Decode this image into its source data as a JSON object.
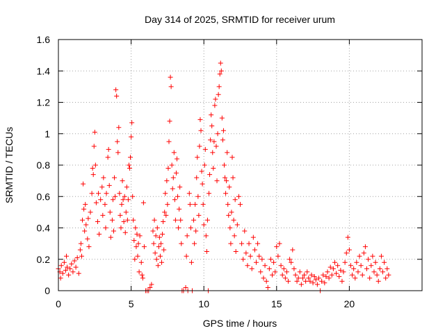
{
  "chart_data": {
    "type": "scatter",
    "title": "Day 314 of 2025, SRMTID for receiver urum",
    "xlabel": "GPS time / hours",
    "ylabel": "SRMTID / TECUs",
    "xlim": [
      0,
      25
    ],
    "ylim": [
      0,
      1.6
    ],
    "x_ticks": [
      0,
      5,
      10,
      15,
      20
    ],
    "x_tick_labels": [
      "0",
      "5",
      "10",
      "15",
      "20"
    ],
    "y_ticks": [
      0,
      0.2,
      0.4,
      0.6,
      0.8,
      1.0,
      1.2,
      1.4,
      1.6
    ],
    "y_tick_labels": [
      "0",
      "0.2",
      "0.4",
      "0.6",
      "0.8",
      "1",
      "1.2",
      "1.4",
      "1.6"
    ],
    "grid": true,
    "marker": "plus",
    "marker_color": "#ff0000",
    "series": [
      {
        "name": "SRMTID",
        "points": [
          [
            0.0,
            0.14
          ],
          [
            0.1,
            0.12
          ],
          [
            0.15,
            0.08
          ],
          [
            0.2,
            0.16
          ],
          [
            0.3,
            0.11
          ],
          [
            0.4,
            0.18
          ],
          [
            0.5,
            0.13
          ],
          [
            0.55,
            0.22
          ],
          [
            0.6,
            0.15
          ],
          [
            0.7,
            0.1
          ],
          [
            0.8,
            0.14
          ],
          [
            0.9,
            0.17
          ],
          [
            1.0,
            0.12
          ],
          [
            1.1,
            0.19
          ],
          [
            1.2,
            0.15
          ],
          [
            1.3,
            0.21
          ],
          [
            1.4,
            0.11
          ],
          [
            1.5,
            0.26
          ],
          [
            1.55,
            0.3
          ],
          [
            1.6,
            0.22
          ],
          [
            1.65,
            0.45
          ],
          [
            1.7,
            0.68
          ],
          [
            1.75,
            0.52
          ],
          [
            1.8,
            0.38
          ],
          [
            1.85,
            0.55
          ],
          [
            1.9,
            0.42
          ],
          [
            2.0,
            0.33
          ],
          [
            2.05,
            0.46
          ],
          [
            2.1,
            0.28
          ],
          [
            2.2,
            0.5
          ],
          [
            2.3,
            0.62
          ],
          [
            2.35,
            0.78
          ],
          [
            2.4,
            0.74
          ],
          [
            2.45,
            0.92
          ],
          [
            2.5,
            1.01
          ],
          [
            2.55,
            0.8
          ],
          [
            2.6,
            0.56
          ],
          [
            2.7,
            0.44
          ],
          [
            2.75,
            0.62
          ],
          [
            2.8,
            0.36
          ],
          [
            2.9,
            0.58
          ],
          [
            3.0,
            0.66
          ],
          [
            3.05,
            0.48
          ],
          [
            3.1,
            0.72
          ],
          [
            3.2,
            0.55
          ],
          [
            3.25,
            0.4
          ],
          [
            3.3,
            0.62
          ],
          [
            3.4,
            0.85
          ],
          [
            3.45,
            0.9
          ],
          [
            3.5,
            0.67
          ],
          [
            3.55,
            0.5
          ],
          [
            3.6,
            0.34
          ],
          [
            3.7,
            0.45
          ],
          [
            3.75,
            0.58
          ],
          [
            3.8,
            0.38
          ],
          [
            3.85,
            0.72
          ],
          [
            3.9,
            0.6
          ],
          [
            3.95,
            1.28
          ],
          [
            4.0,
            1.24
          ],
          [
            4.05,
            0.95
          ],
          [
            4.1,
            0.88
          ],
          [
            4.15,
            1.04
          ],
          [
            4.2,
            0.62
          ],
          [
            4.25,
            0.48
          ],
          [
            4.3,
            0.4
          ],
          [
            4.35,
            0.55
          ],
          [
            4.4,
            0.7
          ],
          [
            4.45,
            0.58
          ],
          [
            4.5,
            0.44
          ],
          [
            4.55,
            0.6
          ],
          [
            4.6,
            0.37
          ],
          [
            4.65,
            0.5
          ],
          [
            4.7,
            0.66
          ],
          [
            4.75,
            0.45
          ],
          [
            4.8,
            0.58
          ],
          [
            4.85,
            0.8
          ],
          [
            4.9,
            0.78
          ],
          [
            4.95,
            0.85
          ],
          [
            5.0,
            0.98
          ],
          [
            5.05,
            1.07
          ],
          [
            5.1,
            0.6
          ],
          [
            5.15,
            0.45
          ],
          [
            5.2,
            0.32
          ],
          [
            5.25,
            0.2
          ],
          [
            5.3,
            0.4
          ],
          [
            5.35,
            0.28
          ],
          [
            5.4,
            0.36
          ],
          [
            5.45,
            0.22
          ],
          [
            5.5,
            0.3
          ],
          [
            5.55,
            0.12
          ],
          [
            5.6,
            0.35
          ],
          [
            5.7,
            0.18
          ],
          [
            5.75,
            0.1
          ],
          [
            5.8,
            0.08
          ],
          [
            5.85,
            0.56
          ],
          [
            5.9,
            0.28
          ],
          [
            6.0,
            0.0
          ],
          [
            6.1,
            0.0
          ],
          [
            6.2,
            0.0
          ],
          [
            6.3,
            0.02
          ],
          [
            6.4,
            0.04
          ],
          [
            6.5,
            0.38
          ],
          [
            6.55,
            0.3
          ],
          [
            6.6,
            0.45
          ],
          [
            6.65,
            0.24
          ],
          [
            6.7,
            0.35
          ],
          [
            6.75,
            0.2
          ],
          [
            6.8,
            0.4
          ],
          [
            6.85,
            0.16
          ],
          [
            6.9,
            0.28
          ],
          [
            6.95,
            0.34
          ],
          [
            7.0,
            0.22
          ],
          [
            7.05,
            0.3
          ],
          [
            7.1,
            0.18
          ],
          [
            7.15,
            0.36
          ],
          [
            7.2,
            0.44
          ],
          [
            7.25,
            0.26
          ],
          [
            7.3,
            0.5
          ],
          [
            7.35,
            0.62
          ],
          [
            7.4,
            0.48
          ],
          [
            7.45,
            0.7
          ],
          [
            7.5,
            0.55
          ],
          [
            7.55,
            0.78
          ],
          [
            7.6,
            0.95
          ],
          [
            7.65,
            1.08
          ],
          [
            7.7,
            1.36
          ],
          [
            7.75,
            1.3
          ],
          [
            7.8,
            0.8
          ],
          [
            7.85,
            0.65
          ],
          [
            7.9,
            0.72
          ],
          [
            7.95,
            0.88
          ],
          [
            8.0,
            0.58
          ],
          [
            8.05,
            0.45
          ],
          [
            8.1,
            0.75
          ],
          [
            8.15,
            0.84
          ],
          [
            8.2,
            0.6
          ],
          [
            8.25,
            0.4
          ],
          [
            8.3,
            0.52
          ],
          [
            8.35,
            0.66
          ],
          [
            8.4,
            0.45
          ],
          [
            8.45,
            0.3
          ],
          [
            8.5,
            0.0
          ],
          [
            8.6,
            0.0
          ],
          [
            8.75,
            0.02
          ],
          [
            8.8,
            0.22
          ],
          [
            8.85,
            0.35
          ],
          [
            8.9,
            0.0
          ],
          [
            9.0,
            0.62
          ],
          [
            9.05,
            0.55
          ],
          [
            9.1,
            0.4
          ],
          [
            9.15,
            0.18
          ],
          [
            9.2,
            0.0
          ],
          [
            9.3,
            0.45
          ],
          [
            9.35,
            0.3
          ],
          [
            9.4,
            0.55
          ],
          [
            9.45,
            0.38
          ],
          [
            9.5,
            0.72
          ],
          [
            9.55,
            0.85
          ],
          [
            9.6,
            0.6
          ],
          [
            9.65,
            0.48
          ],
          [
            9.7,
            0.92
          ],
          [
            9.75,
            1.09
          ],
          [
            9.8,
            1.02
          ],
          [
            9.85,
            0.76
          ],
          [
            9.9,
            0.68
          ],
          [
            9.95,
            0.55
          ],
          [
            10.0,
            0.42
          ],
          [
            10.05,
            0.8
          ],
          [
            10.1,
            0.9
          ],
          [
            10.15,
            0.35
          ],
          [
            10.2,
            0.25
          ],
          [
            10.25,
            0.45
          ],
          [
            10.3,
            0.0
          ],
          [
            10.35,
            0.62
          ],
          [
            10.4,
            0.74
          ],
          [
            10.45,
            0.96
          ],
          [
            10.5,
            1.12
          ],
          [
            10.55,
            1.05
          ],
          [
            10.6,
            0.88
          ],
          [
            10.65,
            0.78
          ],
          [
            10.7,
            0.95
          ],
          [
            10.75,
            1.18
          ],
          [
            10.8,
            1.22
          ],
          [
            10.85,
            0.92
          ],
          [
            10.9,
            0.7
          ],
          [
            10.95,
            1.0
          ],
          [
            11.0,
            1.25
          ],
          [
            11.05,
            1.3
          ],
          [
            11.1,
            1.38
          ],
          [
            11.15,
            1.45
          ],
          [
            11.2,
            1.4
          ],
          [
            11.25,
            1.1
          ],
          [
            11.3,
            0.96
          ],
          [
            11.35,
            1.02
          ],
          [
            11.4,
            0.8
          ],
          [
            11.45,
            0.72
          ],
          [
            11.5,
            0.62
          ],
          [
            11.55,
            0.7
          ],
          [
            11.6,
            0.88
          ],
          [
            11.65,
            0.55
          ],
          [
            11.7,
            0.48
          ],
          [
            11.75,
            0.66
          ],
          [
            11.8,
            0.4
          ],
          [
            11.85,
            0.3
          ],
          [
            11.9,
            0.5
          ],
          [
            11.95,
            0.85
          ],
          [
            12.0,
            0.72
          ],
          [
            12.05,
            0.45
          ],
          [
            12.1,
            0.35
          ],
          [
            12.15,
            0.58
          ],
          [
            12.2,
            0.25
          ],
          [
            12.3,
            0.42
          ],
          [
            12.4,
            0.6
          ],
          [
            12.5,
            0.55
          ],
          [
            12.6,
            0.3
          ],
          [
            12.7,
            0.2
          ],
          [
            12.8,
            0.38
          ],
          [
            12.9,
            0.24
          ],
          [
            13.0,
            0.16
          ],
          [
            13.1,
            0.3
          ],
          [
            13.2,
            0.22
          ],
          [
            13.3,
            0.14
          ],
          [
            13.4,
            0.34
          ],
          [
            13.5,
            0.26
          ],
          [
            13.6,
            0.18
          ],
          [
            13.7,
            0.3
          ],
          [
            13.8,
            0.22
          ],
          [
            13.9,
            0.12
          ],
          [
            14.0,
            0.2
          ],
          [
            14.1,
            0.08
          ],
          [
            14.2,
            0.16
          ],
          [
            14.3,
            0.06
          ],
          [
            14.4,
            0.02
          ],
          [
            14.5,
            0.14
          ],
          [
            14.6,
            0.2
          ],
          [
            14.7,
            0.1
          ],
          [
            14.8,
            0.18
          ],
          [
            14.9,
            0.12
          ],
          [
            15.0,
            0.28
          ],
          [
            15.1,
            0.22
          ],
          [
            15.2,
            0.3
          ],
          [
            15.3,
            0.16
          ],
          [
            15.4,
            0.1
          ],
          [
            15.5,
            0.14
          ],
          [
            15.6,
            0.08
          ],
          [
            15.7,
            0.12
          ],
          [
            15.8,
            0.06
          ],
          [
            15.9,
            0.2
          ],
          [
            16.0,
            0.18
          ],
          [
            16.1,
            0.26
          ],
          [
            16.2,
            0.14
          ],
          [
            16.3,
            0.1
          ],
          [
            16.4,
            0.06
          ],
          [
            16.5,
            0.08
          ],
          [
            16.6,
            0.12
          ],
          [
            16.7,
            0.04
          ],
          [
            16.8,
            0.08
          ],
          [
            16.9,
            0.1
          ],
          [
            17.0,
            0.06
          ],
          [
            17.1,
            0.12
          ],
          [
            17.2,
            0.08
          ],
          [
            17.3,
            0.06
          ],
          [
            17.4,
            0.1
          ],
          [
            17.5,
            0.05
          ],
          [
            17.6,
            0.09
          ],
          [
            17.7,
            0.07
          ],
          [
            17.8,
            0.04
          ],
          [
            17.9,
            0.08
          ],
          [
            18.0,
            0.0
          ],
          [
            18.1,
            0.06
          ],
          [
            18.2,
            0.1
          ],
          [
            18.3,
            0.05
          ],
          [
            18.4,
            0.09
          ],
          [
            18.5,
            0.12
          ],
          [
            18.6,
            0.08
          ],
          [
            18.7,
            0.15
          ],
          [
            18.8,
            0.1
          ],
          [
            18.9,
            0.14
          ],
          [
            19.0,
            0.18
          ],
          [
            19.1,
            0.11
          ],
          [
            19.2,
            0.16
          ],
          [
            19.3,
            0.09
          ],
          [
            19.4,
            0.13
          ],
          [
            19.5,
            0.06
          ],
          [
            19.6,
            0.12
          ],
          [
            19.7,
            0.18
          ],
          [
            19.8,
            0.24
          ],
          [
            19.9,
            0.34
          ],
          [
            20.0,
            0.26
          ],
          [
            20.1,
            0.16
          ],
          [
            20.2,
            0.1
          ],
          [
            20.3,
            0.14
          ],
          [
            20.4,
            0.08
          ],
          [
            20.5,
            0.18
          ],
          [
            20.6,
            0.12
          ],
          [
            20.7,
            0.22
          ],
          [
            20.8,
            0.16
          ],
          [
            20.9,
            0.1
          ],
          [
            21.0,
            0.24
          ],
          [
            21.1,
            0.28
          ],
          [
            21.2,
            0.14
          ],
          [
            21.3,
            0.2
          ],
          [
            21.4,
            0.08
          ],
          [
            21.5,
            0.16
          ],
          [
            21.6,
            0.22
          ],
          [
            21.7,
            0.12
          ],
          [
            21.8,
            0.18
          ],
          [
            21.9,
            0.1
          ],
          [
            22.0,
            0.06
          ],
          [
            22.1,
            0.14
          ],
          [
            22.2,
            0.22
          ],
          [
            22.3,
            0.12
          ],
          [
            22.4,
            0.18
          ],
          [
            22.5,
            0.08
          ],
          [
            22.6,
            0.14
          ],
          [
            22.7,
            0.1
          ]
        ]
      }
    ]
  }
}
